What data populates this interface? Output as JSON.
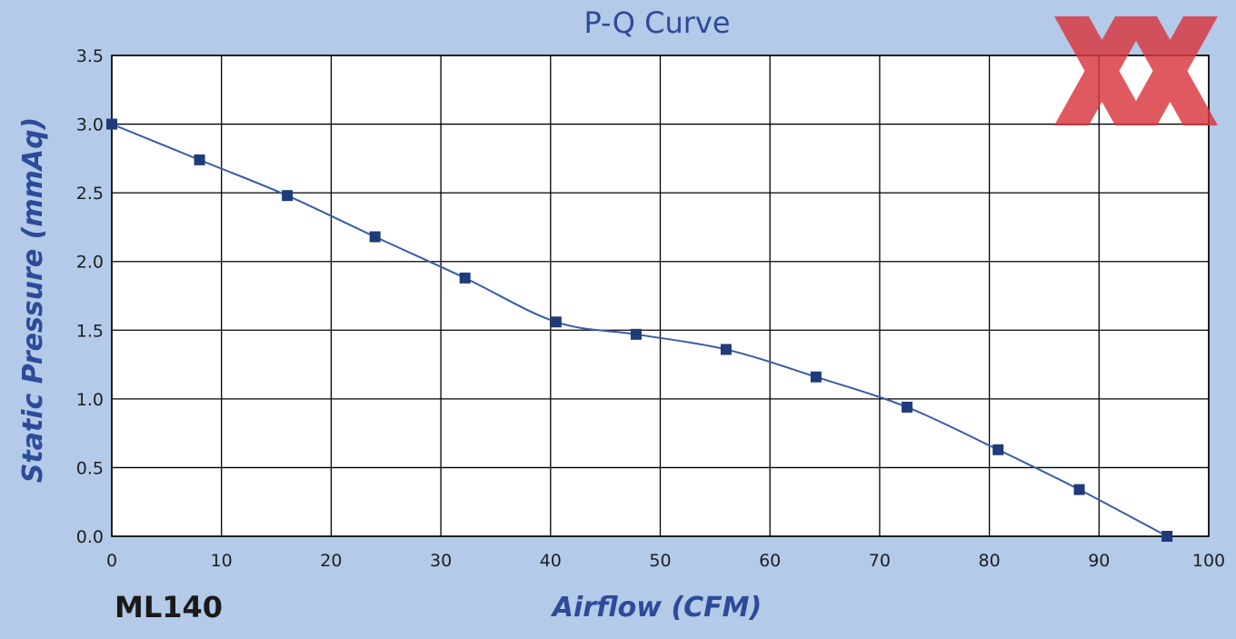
{
  "colors": {
    "background": "#b3cae8",
    "plot_background": "#ffffff",
    "grid": "#000000",
    "line": "#3a5aa8",
    "marker": "#1f3b7a",
    "title": "#2e4a9a",
    "watermark": "#d9363e"
  },
  "watermark_icon": "red-double-x-logo",
  "model_label": "ML140",
  "chart_data": {
    "type": "line",
    "title": "P-Q Curve",
    "xlabel": "Airflow (CFM)",
    "ylabel": "Static Pressure (mmAq)",
    "xlim": [
      0,
      100
    ],
    "ylim": [
      0,
      3.5
    ],
    "x_ticks": [
      0,
      10,
      20,
      30,
      40,
      50,
      60,
      70,
      80,
      90,
      100
    ],
    "y_ticks": [
      0.0,
      0.5,
      1.0,
      1.5,
      2.0,
      2.5,
      3.0,
      3.5
    ],
    "x_tick_labels": [
      "0",
      "10",
      "20",
      "30",
      "40",
      "50",
      "60",
      "70",
      "80",
      "90",
      "100"
    ],
    "y_tick_labels": [
      "0.0",
      "0.5",
      "1.0",
      "1.5",
      "2.0",
      "2.5",
      "3.0",
      "3.5"
    ],
    "grid": true,
    "marker": "square",
    "series": [
      {
        "x": [
          0,
          8,
          16,
          24,
          32.2,
          40.5,
          47.8,
          56,
          64.2,
          72.5,
          80.8,
          88.2,
          96.2
        ],
        "y": [
          3.0,
          2.74,
          2.48,
          2.18,
          1.88,
          1.56,
          1.47,
          1.36,
          1.16,
          0.94,
          0.63,
          0.34,
          0.0
        ]
      }
    ]
  }
}
